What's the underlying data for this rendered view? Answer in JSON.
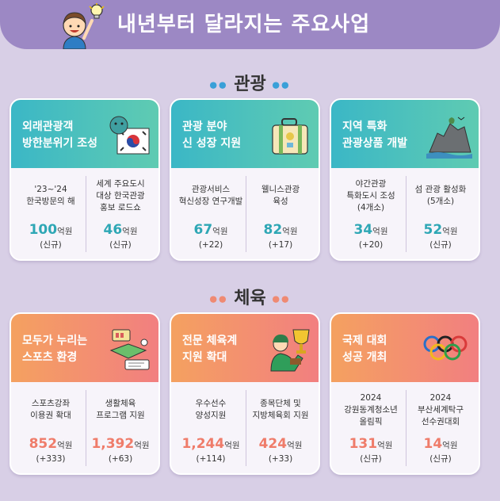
{
  "header": {
    "title": "내년부터 달라지는 주요사업"
  },
  "sections": [
    {
      "title": "관광",
      "dots": "●●",
      "cards": [
        {
          "title": "외래관광객\n방한분위기 조성",
          "icon": "tiger-flag-icon",
          "items": [
            {
              "label": "'23~'24\n한국방문의 해",
              "value": "100",
              "unit": "억원",
              "note": "(신규)"
            },
            {
              "label": "세계 주요도시\n대상 한국관광\n홍보 로드쇼",
              "value": "46",
              "unit": "억원",
              "note": "(신규)"
            }
          ]
        },
        {
          "title": "관광 분야\n신 성장 지원",
          "icon": "suitcase-icon",
          "items": [
            {
              "label": "관광서비스\n혁신성장 연구개발",
              "value": "67",
              "unit": "억원",
              "note": "(+22)"
            },
            {
              "label": "웰니스관광\n육성",
              "value": "82",
              "unit": "억원",
              "note": "(+17)"
            }
          ]
        },
        {
          "title": "지역 특화\n관광상품 개발",
          "icon": "island-rock-icon",
          "items": [
            {
              "label": "야간관광\n특화도시 조성\n(4개소)",
              "value": "34",
              "unit": "억원",
              "note": "(+20)"
            },
            {
              "label": "섬 관광 활성화\n(5개소)",
              "value": "52",
              "unit": "억원",
              "note": "(신규)"
            }
          ]
        }
      ]
    },
    {
      "title": "체육",
      "dots": "●●",
      "cards": [
        {
          "title": "모두가 누리는\n스포츠 환경",
          "icon": "sports-voucher-icon",
          "items": [
            {
              "label": "스포츠강좌\n이용권 확대",
              "value": "852",
              "unit": "억원",
              "note": "(+333)"
            },
            {
              "label": "생활체육\n프로그램 지원",
              "value": "1,392",
              "unit": "억원",
              "note": "(+63)"
            }
          ]
        },
        {
          "title": "전문 체육계\n지원 확대",
          "icon": "trophy-athlete-icon",
          "items": [
            {
              "label": "우수선수\n양성지원",
              "value": "1,244",
              "unit": "억원",
              "note": "(+114)"
            },
            {
              "label": "종목단체 및\n지방체육회 지원",
              "value": "424",
              "unit": "억원",
              "note": "(+33)"
            }
          ]
        },
        {
          "title": "국제 대회\n성공 개최",
          "icon": "olympic-rings-icon",
          "items": [
            {
              "label": "2024\n강원동계청소년\n올림픽",
              "value": "131",
              "unit": "억원",
              "note": "(신규)"
            },
            {
              "label": "2024\n부산세계탁구\n선수권대회",
              "value": "14",
              "unit": "억원",
              "note": "(신규)"
            }
          ]
        }
      ]
    }
  ],
  "colors": {
    "banner": "#9c88c4",
    "teal": "#2ea7b5",
    "coral": "#ef7c6a",
    "background": "#d8cfe6"
  }
}
